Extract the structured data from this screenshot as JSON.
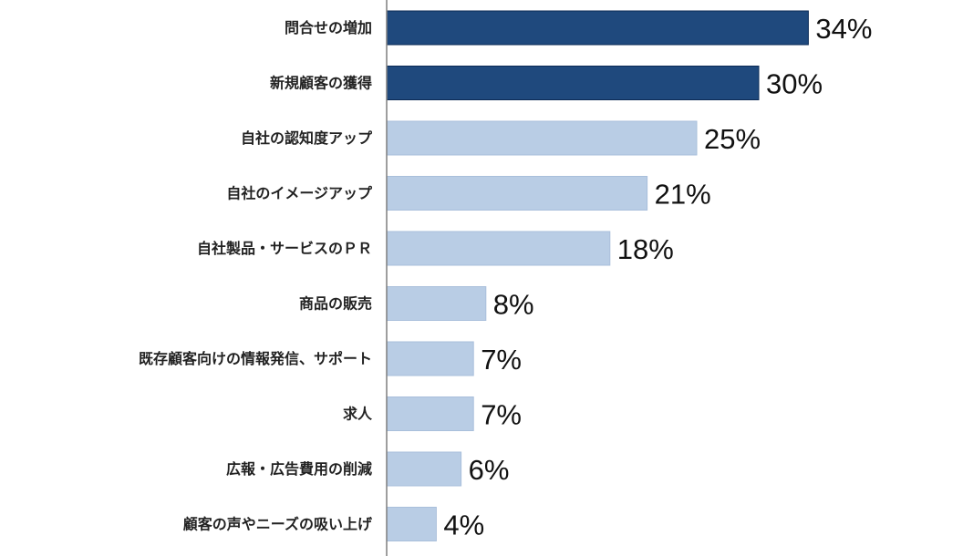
{
  "chart_data": {
    "type": "bar",
    "orientation": "horizontal",
    "title": "",
    "xlabel": "",
    "ylabel": "",
    "categories": [
      "問合せの増加",
      "新規顧客の獲得",
      "自社の認知度アップ",
      "自社のイメージアップ",
      "自社製品・サービスのＰＲ",
      "商品の販売",
      "既存顧客向けの情報発信、サポート",
      "求人",
      "広報・広告費用の削減",
      "顧客の声やニーズの吸い上げ"
    ],
    "values": [
      34,
      30,
      25,
      21,
      18,
      8,
      7,
      7,
      6,
      4
    ],
    "value_labels": [
      "34%",
      "30%",
      "25%",
      "21%",
      "18%",
      "8%",
      "7%",
      "7%",
      "6%",
      "4%"
    ],
    "unit": "%",
    "xlim": [
      0,
      46
    ],
    "grid": false,
    "legend": "none",
    "highlight_count": 2,
    "colors": {
      "highlight": "#1f497d",
      "highlight_border": "#0b2a55",
      "normal": "#b9cde5",
      "normal_border": "#a9bfdb",
      "axis": "#7f7f7f"
    }
  }
}
